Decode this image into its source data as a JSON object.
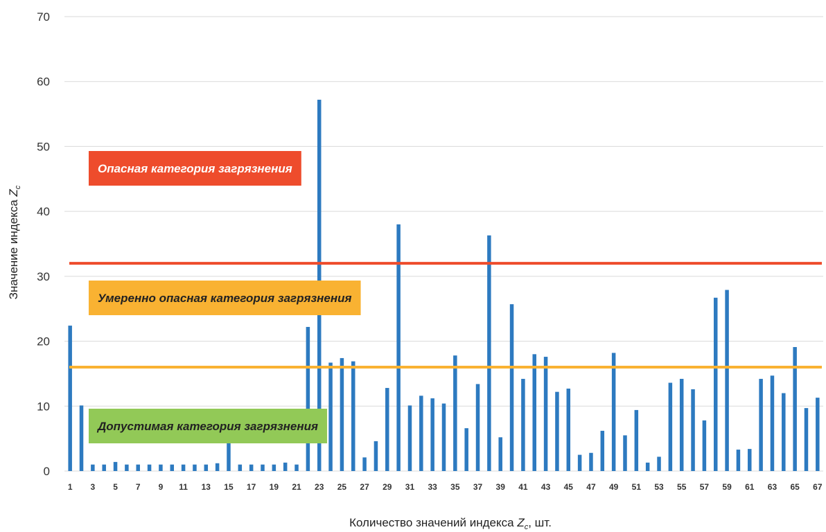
{
  "chart_data": {
    "type": "bar",
    "xlabel_main": "Количество значений индекса ",
    "xlabel_symbol": "Z",
    "xlabel_sub": "c",
    "xlabel_tail": ",  шт.",
    "ylabel_main": "Значение индекса ",
    "ylabel_symbol": "Z",
    "ylabel_sub": "c",
    "ylim": [
      0,
      70
    ],
    "yticks": [
      0,
      10,
      20,
      30,
      40,
      50,
      60,
      70
    ],
    "grid": true,
    "categories": [
      1,
      2,
      3,
      4,
      5,
      6,
      7,
      8,
      9,
      10,
      11,
      12,
      13,
      14,
      15,
      16,
      17,
      18,
      19,
      20,
      21,
      22,
      23,
      24,
      25,
      26,
      27,
      28,
      29,
      30,
      31,
      32,
      33,
      34,
      35,
      36,
      37,
      38,
      39,
      40,
      41,
      42,
      43,
      44,
      45,
      46,
      47,
      48,
      49,
      50,
      51,
      52,
      53,
      54,
      55,
      56,
      57,
      58,
      59,
      60,
      61,
      62,
      63,
      64,
      65,
      66,
      67
    ],
    "xtick_labels": [
      "1",
      "3",
      "5",
      "7",
      "9",
      "11",
      "13",
      "15",
      "17",
      "19",
      "21",
      "23",
      "25",
      "27",
      "29",
      "31",
      "33",
      "35",
      "37",
      "39",
      "41",
      "43",
      "45",
      "47",
      "49",
      "51",
      "53",
      "55",
      "57",
      "59",
      "61",
      "63",
      "65",
      "67"
    ],
    "values": [
      22.4,
      10.1,
      1.0,
      1.0,
      1.4,
      1.0,
      1.0,
      1.0,
      1.0,
      1.0,
      1.0,
      1.0,
      1.0,
      1.2,
      4.6,
      1.0,
      1.0,
      1.0,
      1.0,
      1.3,
      1.0,
      22.2,
      57.2,
      16.7,
      17.4,
      16.9,
      2.1,
      4.6,
      12.8,
      38.0,
      10.1,
      11.6,
      11.2,
      10.4,
      17.8,
      6.6,
      13.4,
      36.3,
      5.2,
      25.7,
      14.2,
      18.0,
      17.6,
      12.2,
      12.7,
      2.5,
      2.8,
      6.2,
      18.2,
      5.5,
      9.4,
      1.3,
      2.2,
      13.6,
      14.2,
      12.6,
      7.8,
      26.7,
      27.9,
      3.3,
      3.4,
      14.2,
      14.7,
      12.0,
      19.1,
      9.7,
      11.3
    ],
    "thresholds": [
      {
        "value": 32,
        "color": "#EE4C2C"
      },
      {
        "value": 16,
        "color": "#F9B232"
      }
    ],
    "zones": [
      {
        "label": "Опасная категория загрязнения",
        "bg": "#EE4C2C",
        "fg": "#FFFFFF"
      },
      {
        "label": "Умеренно опасная категория загрязнения",
        "bg": "#F9B232",
        "fg": "#222222"
      },
      {
        "label": "Допустимая категория загрязнения",
        "bg": "#92C957",
        "fg": "#222222"
      }
    ],
    "bar_color": "#2D7AC0",
    "grid_color": "#D9D9D9"
  }
}
